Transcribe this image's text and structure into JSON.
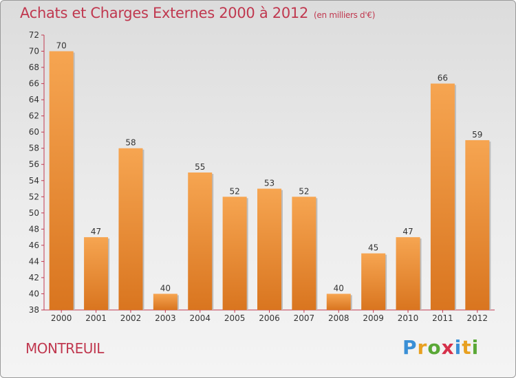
{
  "title": "Achats et Charges Externes 2000 à 2012",
  "unit": "(en milliers d'€)",
  "city": "MONTREUIL",
  "logo": {
    "letters": [
      "P",
      "r",
      "o",
      "x",
      "i",
      "t",
      "i"
    ],
    "colors": [
      "#3a8fd6",
      "#e8a020",
      "#5aa836",
      "#d6304a",
      "#3a8fd6",
      "#e8a020",
      "#5aa836"
    ],
    "text": "Proxiti"
  },
  "colors": {
    "bar_top": "#f6a551",
    "bar_bottom": "#d9751f",
    "axis": "#c0384f",
    "text": "#c0384f"
  },
  "chart_data": {
    "type": "bar",
    "title": "Achats et Charges Externes 2000 à 2012",
    "categories": [
      "2000",
      "2001",
      "2002",
      "2003",
      "2004",
      "2005",
      "2006",
      "2007",
      "2008",
      "2009",
      "2010",
      "2011",
      "2012"
    ],
    "values": [
      70,
      47,
      58,
      40,
      55,
      52,
      53,
      52,
      40,
      45,
      47,
      66,
      59
    ],
    "ylim": [
      38,
      72
    ],
    "yticks": [
      38,
      40,
      42,
      44,
      46,
      48,
      50,
      52,
      54,
      56,
      58,
      60,
      62,
      64,
      66,
      68,
      70,
      72
    ],
    "grid": false,
    "data_labels": true
  }
}
